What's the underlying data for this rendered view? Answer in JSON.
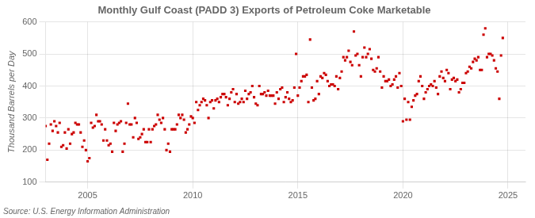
{
  "chart_data": {
    "type": "scatter",
    "title": "Monthly Gulf Coast (PADD 3) Exports of Petroleum Coke Marketable",
    "y_label": "Thousand Barrels per Day",
    "annotations": [
      "Source: U.S. Energy Information Administration"
    ],
    "xlim": [
      2003.0,
      2025.83
    ],
    "xticks": [
      2005,
      2010,
      2015,
      2020,
      2025
    ],
    "ylim": [
      100,
      600
    ],
    "yticks": [
      100,
      200,
      300,
      400,
      500,
      600
    ],
    "grid": true,
    "color": "#cc0000",
    "marker": "square",
    "x": [
      2003.0,
      2003.083,
      2003.167,
      2003.25,
      2003.333,
      2003.417,
      2003.5,
      2003.583,
      2003.667,
      2003.75,
      2003.833,
      2003.917,
      2004.0,
      2004.083,
      2004.167,
      2004.25,
      2004.333,
      2004.417,
      2004.5,
      2004.583,
      2004.667,
      2004.75,
      2004.833,
      2004.917,
      2005.0,
      2005.083,
      2005.167,
      2005.25,
      2005.333,
      2005.417,
      2005.5,
      2005.583,
      2005.667,
      2005.75,
      2005.833,
      2005.917,
      2006.0,
      2006.083,
      2006.167,
      2006.25,
      2006.333,
      2006.417,
      2006.5,
      2006.583,
      2006.667,
      2006.75,
      2006.833,
      2006.917,
      2007.0,
      2007.083,
      2007.167,
      2007.25,
      2007.333,
      2007.417,
      2007.5,
      2007.583,
      2007.667,
      2007.75,
      2007.833,
      2007.917,
      2008.0,
      2008.083,
      2008.167,
      2008.25,
      2008.333,
      2008.417,
      2008.5,
      2008.583,
      2008.667,
      2008.75,
      2008.833,
      2008.917,
      2009.0,
      2009.083,
      2009.167,
      2009.25,
      2009.333,
      2009.417,
      2009.5,
      2009.583,
      2009.667,
      2009.75,
      2009.833,
      2009.917,
      2010.0,
      2010.083,
      2010.167,
      2010.25,
      2010.333,
      2010.417,
      2010.5,
      2010.583,
      2010.667,
      2010.75,
      2010.833,
      2010.917,
      2011.0,
      2011.083,
      2011.167,
      2011.25,
      2011.333,
      2011.417,
      2011.5,
      2011.583,
      2011.667,
      2011.75,
      2011.833,
      2011.917,
      2012.0,
      2012.083,
      2012.167,
      2012.25,
      2012.333,
      2012.417,
      2012.5,
      2012.583,
      2012.667,
      2012.75,
      2012.833,
      2012.917,
      2013.0,
      2013.083,
      2013.167,
      2013.25,
      2013.333,
      2013.417,
      2013.5,
      2013.583,
      2013.667,
      2013.75,
      2013.833,
      2013.917,
      2014.0,
      2014.083,
      2014.167,
      2014.25,
      2014.333,
      2014.417,
      2014.5,
      2014.583,
      2014.667,
      2014.75,
      2014.833,
      2014.917,
      2015.0,
      2015.083,
      2015.167,
      2015.25,
      2015.333,
      2015.417,
      2015.5,
      2015.583,
      2015.667,
      2015.75,
      2015.833,
      2015.917,
      2016.0,
      2016.083,
      2016.167,
      2016.25,
      2016.333,
      2016.417,
      2016.5,
      2016.583,
      2016.667,
      2016.75,
      2016.833,
      2016.917,
      2017.0,
      2017.083,
      2017.167,
      2017.25,
      2017.333,
      2017.417,
      2017.5,
      2017.583,
      2017.667,
      2017.75,
      2017.833,
      2017.917,
      2018.0,
      2018.083,
      2018.167,
      2018.25,
      2018.333,
      2018.417,
      2018.5,
      2018.583,
      2018.667,
      2018.75,
      2018.833,
      2018.917,
      2019.0,
      2019.083,
      2019.167,
      2019.25,
      2019.333,
      2019.417,
      2019.5,
      2019.583,
      2019.667,
      2019.75,
      2019.833,
      2019.917,
      2020.0,
      2020.083,
      2020.167,
      2020.25,
      2020.333,
      2020.417,
      2020.5,
      2020.583,
      2020.667,
      2020.75,
      2020.833,
      2020.917,
      2021.0,
      2021.083,
      2021.167,
      2021.25,
      2021.333,
      2021.417,
      2021.5,
      2021.583,
      2021.667,
      2021.75,
      2021.833,
      2021.917,
      2022.0,
      2022.083,
      2022.167,
      2022.25,
      2022.333,
      2022.417,
      2022.5,
      2022.583,
      2022.667,
      2022.75,
      2022.833,
      2022.917,
      2023.0,
      2023.083,
      2023.167,
      2023.25,
      2023.333,
      2023.417,
      2023.5,
      2023.583,
      2023.667,
      2023.75,
      2023.833,
      2023.917,
      2024.0,
      2024.083,
      2024.167,
      2024.25,
      2024.333,
      2024.417,
      2024.5,
      2024.583,
      2024.667,
      2024.75
    ],
    "values": [
      275,
      170,
      220,
      280,
      260,
      290,
      275,
      255,
      285,
      210,
      215,
      255,
      205,
      265,
      220,
      250,
      255,
      285,
      280,
      280,
      255,
      210,
      230,
      200,
      165,
      175,
      285,
      270,
      275,
      310,
      290,
      290,
      280,
      230,
      265,
      230,
      215,
      220,
      195,
      285,
      260,
      280,
      285,
      290,
      195,
      220,
      285,
      345,
      280,
      280,
      240,
      300,
      285,
      235,
      240,
      250,
      265,
      225,
      225,
      265,
      225,
      265,
      275,
      280,
      310,
      295,
      285,
      300,
      265,
      200,
      220,
      195,
      265,
      265,
      265,
      280,
      310,
      300,
      310,
      295,
      255,
      265,
      280,
      305,
      300,
      285,
      350,
      325,
      340,
      350,
      360,
      355,
      340,
      300,
      350,
      355,
      330,
      355,
      360,
      350,
      365,
      375,
      375,
      365,
      340,
      360,
      380,
      390,
      350,
      375,
      345,
      350,
      360,
      350,
      385,
      360,
      375,
      380,
      400,
      365,
      345,
      340,
      400,
      375,
      375,
      380,
      370,
      385,
      370,
      370,
      370,
      345,
      380,
      360,
      390,
      395,
      350,
      365,
      380,
      360,
      350,
      355,
      395,
      500,
      370,
      395,
      415,
      430,
      430,
      435,
      350,
      545,
      395,
      355,
      360,
      415,
      375,
      430,
      425,
      440,
      435,
      415,
      400,
      405,
      405,
      400,
      430,
      390,
      425,
      445,
      490,
      480,
      490,
      510,
      475,
      465,
      570,
      495,
      500,
      465,
      430,
      490,
      520,
      490,
      500,
      515,
      485,
      450,
      445,
      455,
      490,
      445,
      395,
      430,
      415,
      415,
      420,
      400,
      405,
      420,
      430,
      395,
      440,
      400,
      290,
      360,
      295,
      350,
      295,
      335,
      355,
      370,
      375,
      415,
      430,
      400,
      360,
      380,
      390,
      400,
      405,
      400,
      415,
      395,
      375,
      430,
      445,
      425,
      415,
      450,
      440,
      390,
      420,
      425,
      415,
      420,
      380,
      390,
      410,
      410,
      440,
      445,
      460,
      455,
      475,
      485,
      480,
      490,
      450,
      450,
      560,
      580,
      490,
      500,
      500,
      495,
      480,
      455,
      445,
      360,
      495,
      550
    ]
  }
}
